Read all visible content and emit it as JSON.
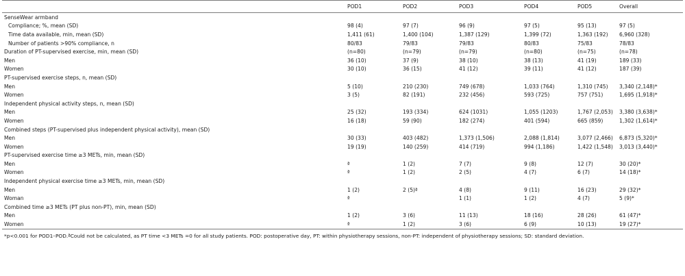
{
  "header": [
    "",
    "POD1",
    "POD2",
    "POD3",
    "POD4",
    "POD5",
    "Overall"
  ],
  "rows": [
    {
      "label": "SenseWear armband",
      "type": "section",
      "cells": [
        "",
        "",
        "",
        "",
        "",
        ""
      ]
    },
    {
      "label": "Compliance; %, mean (SD)",
      "type": "indent",
      "cells": [
        "98 (4)",
        "97 (7)",
        "96 (9)",
        "97 (5)",
        "95 (13)",
        "97 (5)"
      ]
    },
    {
      "label": "Time data available, min, mean (SD)",
      "type": "indent",
      "cells": [
        "1,411 (61)",
        "1,400 (104)",
        "1,387 (129)",
        "1,399 (72)",
        "1,363 (192)",
        "6,960 (328)"
      ]
    },
    {
      "label": "Number of patients >90% compliance, n",
      "type": "indent",
      "cells": [
        "80/83",
        "79/83",
        "79/83",
        "80/83",
        "75/83",
        "78/83"
      ]
    },
    {
      "label": "Duration of PT-supervised exercise, min, mean (SD)",
      "type": "section",
      "cells": [
        "(n=80)",
        "(n=79)",
        "(n=79)",
        "(n=80)",
        "(n=75)",
        "(n=78)"
      ]
    },
    {
      "label": "Men",
      "type": "row",
      "cells": [
        "36 (10)",
        "37 (9)",
        "38 (10)",
        "38 (13)",
        "41 (19)",
        "189 (33)"
      ]
    },
    {
      "label": "Women",
      "type": "row",
      "cells": [
        "30 (10)",
        "36 (15)",
        "41 (12)",
        "39 (11)",
        "41 (12)",
        "187 (39)"
      ]
    },
    {
      "label": "PT-supervised exercise steps, n, mean (SD)",
      "type": "section",
      "cells": [
        "",
        "",
        "",
        "",
        "",
        ""
      ]
    },
    {
      "label": "Men",
      "type": "row",
      "cells": [
        "5 (10)",
        "210 (230)",
        "749 (678)",
        "1,033 (764)",
        "1,310 (745)",
        "3,340 (2,148)*"
      ]
    },
    {
      "label": "Women",
      "type": "row",
      "cells": [
        "3 (5)",
        "82 (191)",
        "232 (456)",
        "593 (725)",
        "757 (751)",
        "1,695 (1,918)*"
      ]
    },
    {
      "label": "Independent physical activity steps, n, mean (SD)",
      "type": "section",
      "cells": [
        "",
        "",
        "",
        "",
        "",
        ""
      ]
    },
    {
      "label": "Men",
      "type": "row",
      "cells": [
        "25 (32)",
        "193 (334)",
        "624 (1031)",
        "1,055 (1203)",
        "1,767 (2,053)",
        "3,380 (3,638)*"
      ]
    },
    {
      "label": "Women",
      "type": "row",
      "cells": [
        "16 (18)",
        "59 (90)",
        "182 (274)",
        "401 (594)",
        "665 (859)",
        "1,302 (1,614)*"
      ]
    },
    {
      "label": "Combined steps (PT-supervised plus independent physical activity), mean (SD)",
      "type": "section",
      "cells": [
        "",
        "",
        "",
        "",
        "",
        ""
      ]
    },
    {
      "label": "Men",
      "type": "row",
      "cells": [
        "30 (33)",
        "403 (482)",
        "1,373 (1,506)",
        "2,088 (1,814)",
        "3,077 (2,466)",
        "6,873 (5,320)*"
      ]
    },
    {
      "label": "Women",
      "type": "row",
      "cells": [
        "19 (19)",
        "140 (259)",
        "414 (719)",
        "994 (1,186)",
        "1,422 (1,548)",
        "3,013 (3,440)*"
      ]
    },
    {
      "label": "PT-supervised exercise time ≥3 METs, min, mean (SD)",
      "type": "section",
      "cells": [
        "",
        "",
        "",
        "",
        "",
        ""
      ]
    },
    {
      "label": "Men",
      "type": "row",
      "cells": [
        "ª",
        "1 (2)",
        "7 (7)",
        "9 (8)",
        "12 (7)",
        "30 (20)*"
      ]
    },
    {
      "label": "Women",
      "type": "row",
      "cells": [
        "ª",
        "1 (2)",
        "2 (5)",
        "4 (7)",
        "6 (7)",
        "14 (18)*"
      ]
    },
    {
      "label": "Independent physical exercise time ≥3 METs, min, mean (SD)",
      "type": "section",
      "cells": [
        "",
        "",
        "",
        "",
        "",
        ""
      ]
    },
    {
      "label": "Men",
      "type": "row",
      "cells": [
        "1 (2)",
        "2 (5)ª",
        "4 (8)",
        "9 (11)",
        "16 (23)",
        "29 (32)*"
      ]
    },
    {
      "label": "Woman",
      "type": "row",
      "cells": [
        "ª",
        "",
        "1 (1)",
        "1 (2)",
        "4 (7)",
        "5 (9)*"
      ]
    },
    {
      "label": "Combined time ≥3 METs (PT plus non-PT), min, mean (SD)",
      "type": "section",
      "cells": [
        "",
        "",
        "",
        "",
        "",
        ""
      ]
    },
    {
      "label": "Men",
      "type": "row",
      "cells": [
        "1 (2)",
        "3 (6)",
        "11 (13)",
        "18 (16)",
        "28 (26)",
        "61 (47)*"
      ]
    },
    {
      "label": "Women",
      "type": "row",
      "cells": [
        "ª",
        "1 (2)",
        "3 (6)",
        "6 (9)",
        "10 (13)",
        "19 (27)*"
      ]
    }
  ],
  "footnote": "*p<0.001 for POD1–POD.ªCould not be calculated, as PT time <3 METs =0 for all study patients. POD: postoperative day, PT: within physiotherapy sessions, non-PT: independent of physiotherapy sessions; SD: standard deviation."
}
